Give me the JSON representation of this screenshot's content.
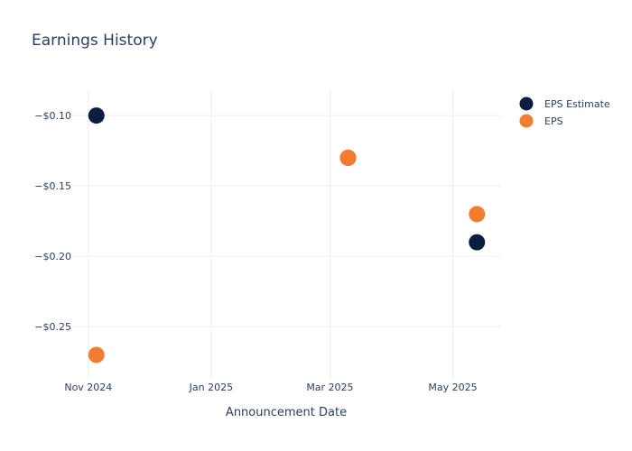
{
  "chart_data": {
    "type": "scatter",
    "title": "Earnings History",
    "xlabel": "Announcement Date",
    "ylabel": "",
    "x_ticks": [
      "Nov 2024",
      "Jan 2025",
      "Mar 2025",
      "May 2025"
    ],
    "x_tick_values": [
      "2024-11-01",
      "2025-01-01",
      "2025-03-01",
      "2025-05-01"
    ],
    "xlim": [
      "2024-10-24",
      "2025-05-25"
    ],
    "y_ticks": [
      "−$0.10",
      "−$0.15",
      "−$0.20",
      "−$0.25"
    ],
    "y_tick_values": [
      -0.1,
      -0.15,
      -0.2,
      -0.25
    ],
    "ylim": [
      -0.287,
      -0.082
    ],
    "grid": true,
    "legend_position": "top-right",
    "series": [
      {
        "name": "EPS Estimate",
        "color": "#0b1e3f",
        "points": [
          {
            "x": "2024-11-05",
            "y": -0.1
          },
          {
            "x": "2025-03-10",
            "y": -0.13
          },
          {
            "x": "2025-05-13",
            "y": -0.19
          }
        ]
      },
      {
        "name": "EPS",
        "color": "#f47c30",
        "points": [
          {
            "x": "2024-11-05",
            "y": -0.27
          },
          {
            "x": "2025-03-10",
            "y": -0.13
          },
          {
            "x": "2025-05-13",
            "y": -0.17
          }
        ]
      }
    ]
  }
}
